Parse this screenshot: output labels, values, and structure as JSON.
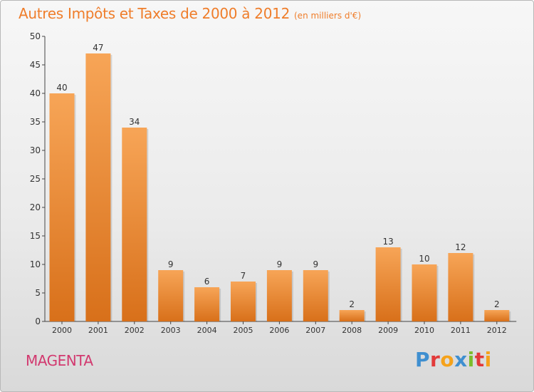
{
  "header": {
    "title": "Autres Impôts et Taxes de 2000 à 2012",
    "subtitle": "(en milliers d'€)"
  },
  "footer": {
    "commune": "MAGENTA",
    "logo_text": "Proxiti",
    "logo_colors": [
      "#3f8fd0",
      "#e23a3a",
      "#f5a21b",
      "#3f8fd0",
      "#7cbd2c",
      "#e23a3a",
      "#f5a21b"
    ]
  },
  "chart_data": {
    "type": "bar",
    "title": "Autres Impôts et Taxes de 2000 à 2012",
    "subtitle": "(en milliers d'€)",
    "categories": [
      "2000",
      "2001",
      "2002",
      "2003",
      "2004",
      "2005",
      "2006",
      "2007",
      "2008",
      "2009",
      "2010",
      "2011",
      "2012"
    ],
    "values": [
      40,
      47,
      34,
      9,
      6,
      7,
      9,
      9,
      2,
      13,
      10,
      12,
      2
    ],
    "ylim": [
      0,
      50
    ],
    "yticks": [
      0,
      5,
      10,
      15,
      20,
      25,
      30,
      35,
      40,
      45,
      50
    ],
    "grid": false,
    "legend": "none",
    "bar_color_top": "#f7a557",
    "bar_color_bottom": "#d8701a",
    "title_color": "#ef7d2a"
  }
}
